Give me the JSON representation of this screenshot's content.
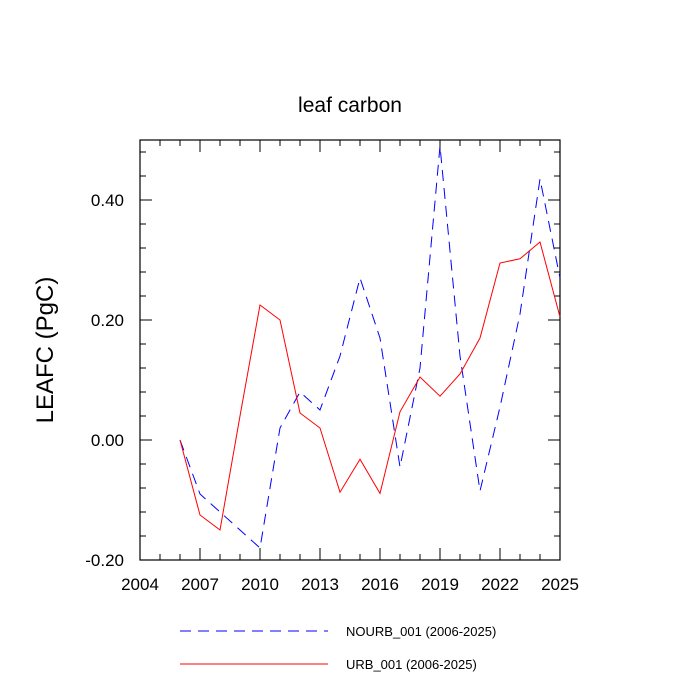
{
  "chart_data": {
    "type": "line",
    "title": "leaf carbon",
    "xlabel": "",
    "ylabel": "LEAFC  (PgC)",
    "xlim": [
      2004,
      2025
    ],
    "ylim": [
      -0.2,
      0.5
    ],
    "x_ticks": [
      2004,
      2007,
      2010,
      2013,
      2016,
      2019,
      2022,
      2025
    ],
    "x_tick_labels": [
      "2004",
      "2007",
      "2010",
      "2013",
      "2016",
      "2019",
      "2022",
      "2025"
    ],
    "y_ticks": [
      -0.2,
      0.0,
      0.2,
      0.4
    ],
    "y_tick_labels": [
      "-0.20",
      "0.00",
      "0.20",
      "0.40"
    ],
    "grid": false,
    "legend_position": "bottom",
    "x": [
      2006,
      2007,
      2008,
      2009,
      2010,
      2011,
      2012,
      2013,
      2014,
      2015,
      2016,
      2017,
      2018,
      2019,
      2020,
      2021,
      2022,
      2023,
      2024,
      2025
    ],
    "series": [
      {
        "name": "NOURB_001 (2006-2025)",
        "color": "#0000ff",
        "style": "dashed",
        "values": [
          0.0,
          -0.09,
          -0.12,
          -0.15,
          -0.18,
          0.02,
          0.08,
          0.05,
          0.14,
          0.27,
          0.17,
          -0.045,
          0.12,
          0.49,
          0.14,
          -0.085,
          0.055,
          0.21,
          0.435,
          0.27
        ]
      },
      {
        "name": "URB_001 (2006-2025)",
        "color": "#ff0000",
        "style": "solid",
        "values": [
          0.0,
          -0.125,
          -0.15,
          0.04,
          0.225,
          0.2,
          0.045,
          0.02,
          -0.087,
          -0.032,
          -0.089,
          0.047,
          0.105,
          0.073,
          0.11,
          0.17,
          0.295,
          0.302,
          0.33,
          0.205
        ]
      }
    ]
  }
}
